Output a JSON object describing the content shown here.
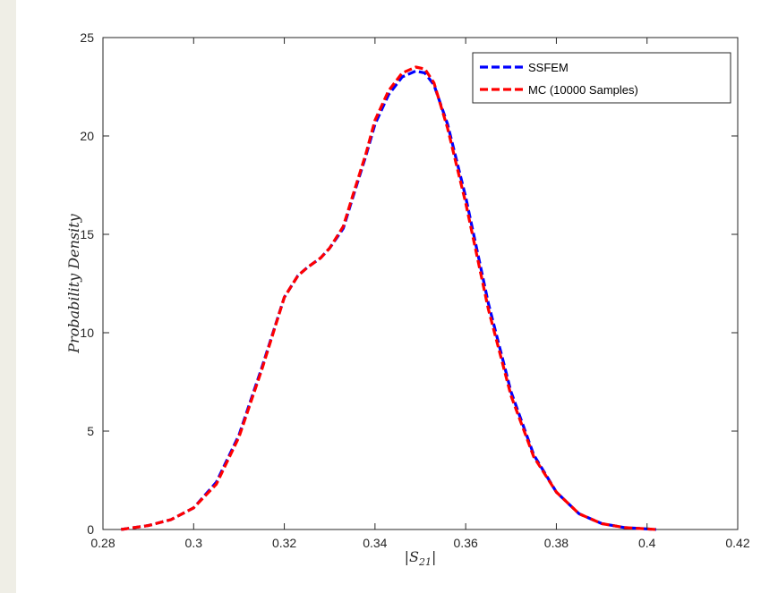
{
  "chart_data": {
    "type": "line",
    "title": "",
    "xlabel": "|S21|",
    "xlabel_main": "|S",
    "xlabel_sub": "21",
    "xlabel_end": "|",
    "ylabel": "Probability Density",
    "xlim": [
      0.28,
      0.42
    ],
    "ylim": [
      0,
      25
    ],
    "xticks": [
      0.28,
      0.3,
      0.32,
      0.34,
      0.36,
      0.38,
      0.4,
      0.42
    ],
    "xtick_labels": [
      "0.28",
      "0.3",
      "0.32",
      "0.34",
      "0.36",
      "0.38",
      "0.4",
      "0.42"
    ],
    "yticks": [
      0,
      5,
      10,
      15,
      20,
      25
    ],
    "ytick_labels": [
      "0",
      "5",
      "10",
      "15",
      "20",
      "25"
    ],
    "grid": false,
    "legend_position": "top-right",
    "series": [
      {
        "name": "SSFEM",
        "color": "#0000ff",
        "style": "dashed",
        "x": [
          0.284,
          0.29,
          0.295,
          0.3,
          0.305,
          0.31,
          0.315,
          0.32,
          0.323,
          0.325,
          0.328,
          0.33,
          0.333,
          0.335,
          0.338,
          0.34,
          0.343,
          0.346,
          0.349,
          0.351,
          0.353,
          0.356,
          0.36,
          0.365,
          0.37,
          0.375,
          0.38,
          0.385,
          0.39,
          0.395,
          0.402
        ],
        "y": [
          0.0,
          0.2,
          0.5,
          1.1,
          2.4,
          4.8,
          8.2,
          11.8,
          12.9,
          13.3,
          13.8,
          14.3,
          15.3,
          16.8,
          19.0,
          20.6,
          22.1,
          23.0,
          23.3,
          23.2,
          22.6,
          20.6,
          16.9,
          11.5,
          7.0,
          3.8,
          1.9,
          0.8,
          0.3,
          0.1,
          0.0
        ]
      },
      {
        "name": "MC (10000 Samples)",
        "color": "#ff0000",
        "style": "dashed",
        "x": [
          0.284,
          0.29,
          0.295,
          0.3,
          0.305,
          0.31,
          0.315,
          0.32,
          0.323,
          0.325,
          0.328,
          0.33,
          0.333,
          0.335,
          0.338,
          0.34,
          0.343,
          0.346,
          0.349,
          0.351,
          0.353,
          0.356,
          0.36,
          0.365,
          0.37,
          0.375,
          0.38,
          0.385,
          0.39,
          0.395,
          0.402
        ],
        "y": [
          0.0,
          0.2,
          0.5,
          1.1,
          2.3,
          4.7,
          8.1,
          11.8,
          12.9,
          13.3,
          13.8,
          14.3,
          15.4,
          16.9,
          19.1,
          20.8,
          22.3,
          23.2,
          23.5,
          23.4,
          22.7,
          20.4,
          16.6,
          11.2,
          6.8,
          3.7,
          1.9,
          0.8,
          0.3,
          0.1,
          0.0
        ]
      }
    ]
  }
}
